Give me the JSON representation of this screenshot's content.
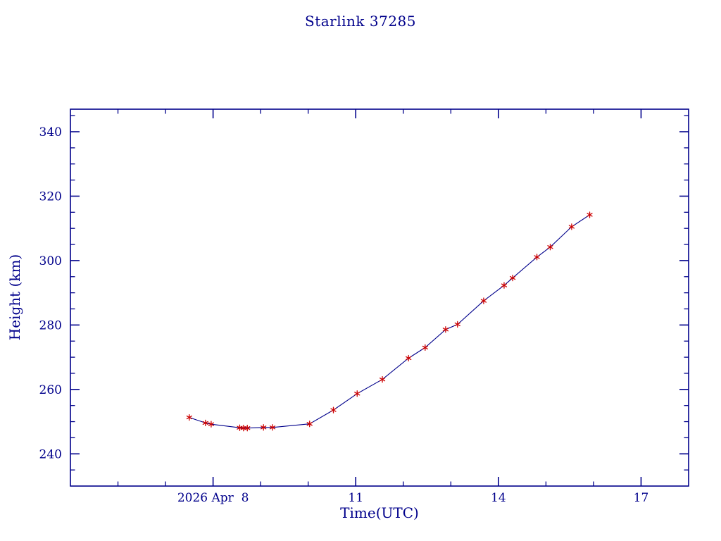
{
  "page": {
    "background": "#FFFFFF"
  },
  "chart_data": {
    "type": "line",
    "title": "Starlink 37285",
    "xlabel": "Time(UTC)",
    "ylabel": "Height (km)",
    "marker_style": "red asterisk",
    "grid": false,
    "legend": "none",
    "colors": {
      "axis": "#00008B",
      "text": "#00008B",
      "line": "#00008B",
      "marker": "#CC0000"
    },
    "x_unit_note": "day of month, 2026 April (UTC)",
    "xlim": [
      5.0,
      18.0
    ],
    "ylim": [
      230,
      347
    ],
    "x_major_ticks": [
      8,
      11,
      14,
      17
    ],
    "x_tick_labels": [
      "2026 Apr  8",
      "11",
      "14",
      "17"
    ],
    "x_minor_tick_step": 1,
    "y_major_ticks": [
      240,
      260,
      280,
      300,
      320,
      340
    ],
    "y_tick_labels": [
      "240",
      "260",
      "280",
      "300",
      "320",
      "340"
    ],
    "y_minor_tick_step": 5,
    "points": [
      [
        7.5,
        251.3
      ],
      [
        7.84,
        249.6
      ],
      [
        7.96,
        249.2
      ],
      [
        8.56,
        248.1
      ],
      [
        8.64,
        248.0
      ],
      [
        8.72,
        248.0
      ],
      [
        9.06,
        248.2
      ],
      [
        9.25,
        248.2
      ],
      [
        10.03,
        249.3
      ],
      [
        10.53,
        253.6
      ],
      [
        11.03,
        258.7
      ],
      [
        11.56,
        263.1
      ],
      [
        12.11,
        269.7
      ],
      [
        12.46,
        273.0
      ],
      [
        12.89,
        278.6
      ],
      [
        13.14,
        280.2
      ],
      [
        13.69,
        287.5
      ],
      [
        14.12,
        292.3
      ],
      [
        14.3,
        294.6
      ],
      [
        14.81,
        301.1
      ],
      [
        15.09,
        304.2
      ],
      [
        15.54,
        310.5
      ],
      [
        15.92,
        314.2
      ]
    ]
  }
}
